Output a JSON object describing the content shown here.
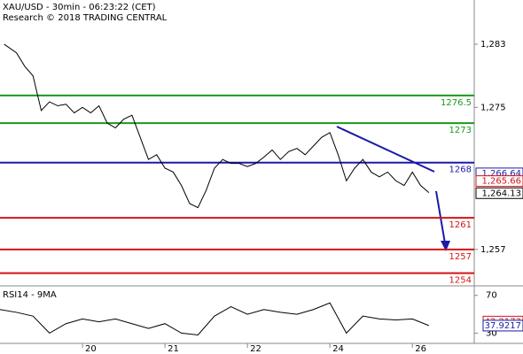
{
  "chart_data": {
    "type": "line",
    "title": "XAU/USD - 30min - 06:23:22 (CET)",
    "subtitle": "Research © 2018 TRADING CENTRAL",
    "xlim": [
      0,
      5.75
    ],
    "xticks": [
      {
        "value": 1,
        "label": "20"
      },
      {
        "value": 2,
        "label": "21"
      },
      {
        "value": 3,
        "label": "22"
      },
      {
        "value": 4,
        "label": "24"
      },
      {
        "value": 5,
        "label": "26"
      }
    ],
    "ylim": [
      1252.5,
      1288.6
    ],
    "yticks": [
      {
        "value": 1257,
        "label": "1,257"
      },
      {
        "value": 1275,
        "label": "1,275"
      },
      {
        "value": 1283,
        "label": "1,283"
      }
    ],
    "x": [
      0.05,
      0.2,
      0.3,
      0.4,
      0.5,
      0.6,
      0.7,
      0.8,
      0.9,
      1.0,
      1.1,
      1.2,
      1.3,
      1.4,
      1.5,
      1.6,
      1.7,
      1.8,
      1.9,
      2.0,
      2.1,
      2.2,
      2.3,
      2.4,
      2.5,
      2.6,
      2.7,
      2.8,
      2.9,
      3.0,
      3.1,
      3.2,
      3.3,
      3.4,
      3.5,
      3.6,
      3.7,
      3.8,
      3.9,
      4.0,
      4.1,
      4.2,
      4.3,
      4.4,
      4.5,
      4.6,
      4.7,
      4.8,
      4.9,
      5.0,
      5.1,
      5.2
    ],
    "series": [
      {
        "color": "#000000",
        "values": [
          1283,
          1281.9,
          1280.2,
          1279,
          1274.6,
          1275.7,
          1275.2,
          1275.4,
          1274.3,
          1275,
          1274.3,
          1275.2,
          1273,
          1272.4,
          1273.5,
          1274,
          1271.2,
          1268.4,
          1269,
          1267.3,
          1266.8,
          1265.1,
          1262.8,
          1262.3,
          1264.5,
          1267.3,
          1268.4,
          1267.9,
          1267.9,
          1267.5,
          1267.9,
          1268.7,
          1269.6,
          1268.4,
          1269.4,
          1269.8,
          1269,
          1270.1,
          1271.2,
          1271.8,
          1269,
          1265.7,
          1267.3,
          1268.4,
          1266.8,
          1266.2,
          1266.8,
          1265.7,
          1265.1,
          1266.8,
          1265.1,
          1264.2
        ]
      }
    ],
    "levels": [
      {
        "value": 1276.5,
        "color": "#1a9a1a"
      },
      {
        "value": 1273,
        "color": "#1a9a1a"
      },
      {
        "value": 1268,
        "color": "#1a1aa8"
      },
      {
        "value": 1261,
        "color": "#d41414"
      },
      {
        "value": 1257,
        "color": "#d41414"
      },
      {
        "value": 1254,
        "color": "#d41414"
      }
    ],
    "price_markers": [
      {
        "value": 1266.64,
        "label": "1,266.64",
        "color": "#1a1aa8"
      },
      {
        "value": 1265.66,
        "label": "1,265.66",
        "color": "#d41414"
      },
      {
        "value": 1264.13,
        "label": "1,264.13",
        "color": "#000000"
      }
    ],
    "rsi": {
      "label": "RSI14 - 9MA",
      "ylim": [
        19.1,
        78.2
      ],
      "yticks": [
        30,
        70
      ],
      "x": [
        0,
        0.2,
        0.4,
        0.6,
        0.8,
        1.0,
        1.2,
        1.4,
        1.6,
        1.8,
        2.0,
        2.2,
        2.4,
        2.6,
        2.8,
        3.0,
        3.2,
        3.4,
        3.6,
        3.8,
        4.0,
        4.2,
        4.4,
        4.6,
        4.8,
        5.0,
        5.2
      ],
      "color": "#000000",
      "values": [
        55,
        52,
        48,
        30,
        40,
        45,
        42,
        45,
        40,
        35,
        40,
        30,
        28,
        48,
        58,
        50,
        55,
        52,
        50,
        55,
        62,
        30,
        48,
        45,
        44,
        45,
        38
      ],
      "markers": [
        {
          "value": 42.2173,
          "color": "#d41414"
        },
        {
          "value": 37.9217,
          "color": "#1a1aa8"
        }
      ]
    }
  }
}
